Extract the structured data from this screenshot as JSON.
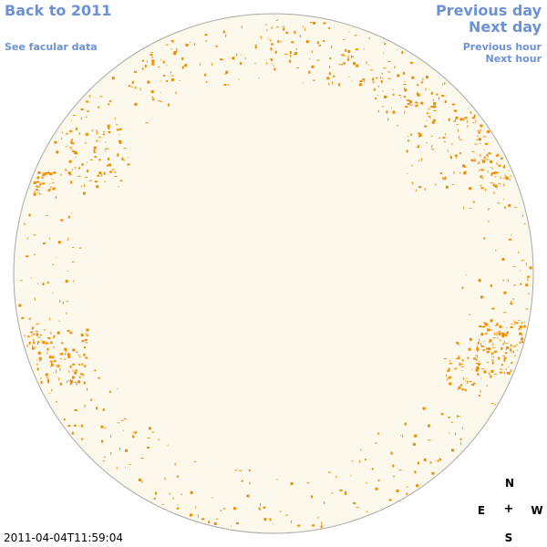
{
  "nav": {
    "back_label": "Back to 2011",
    "facular_label": "See facular data",
    "prev_day_label": "Previous day",
    "next_day_label": "Next day",
    "prev_hour_label": "Previous hour",
    "next_hour_label": "Next hour"
  },
  "compass": {
    "north": "N",
    "east": "E",
    "center": "+",
    "west": "W",
    "south": "S"
  },
  "timestamp": "2011-04-04T11:59:04",
  "colors": {
    "link": "#6b92d6",
    "disk_fill": "#fdf8ec",
    "disk_stroke": "#a8a8a8",
    "facula": "#f08c00",
    "text": "#000000"
  }
}
